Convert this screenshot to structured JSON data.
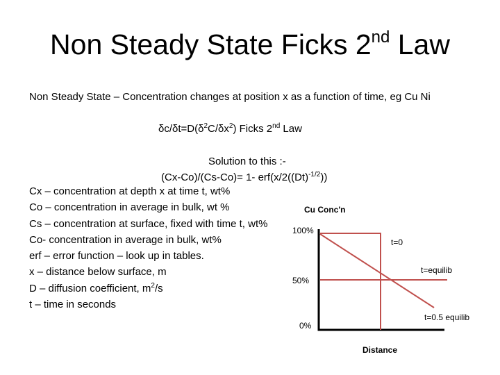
{
  "title": {
    "main": "Non Steady State Ficks 2",
    "sup": "nd",
    "tail": " Law"
  },
  "intro": "Non Steady State – Concentration changes at position x as a function of time, eg Cu Ni",
  "equation": {
    "p1": "δc/δt=D(δ",
    "s1": "2",
    "p2": "C/δx",
    "s2": "2",
    "p3": ") Ficks 2",
    "s3": "nd",
    "p4": " Law"
  },
  "solution_heading": "Solution to this :-",
  "solution": {
    "p1": "(Cx-Co)/(Cs-Co)= 1- erf(x/2((Dt)",
    "s1": "-1/2",
    "p2": "))"
  },
  "definitions": [
    "Cx – concentration at depth x at time t, wt%",
    "Co – concentration in average in bulk, wt %",
    "Cs – concentration at surface, fixed with time t, wt%",
    "Co-  concentration in average in bulk, wt%",
    "erf – error function – look up in tables.",
    "x – distance below surface, m"
  ],
  "def_diffusion": {
    "p1": "D – diffusion coefficient, m",
    "s1": "2",
    "p2": "/s"
  },
  "def_time": "t – time in seconds",
  "chart_labels": {
    "ylabel": "Cu Conc'n",
    "y_ticks": [
      "100%",
      "50%",
      "0%"
    ],
    "xlabel": "Distance",
    "curves": [
      "t=0",
      "t=equilib",
      "t=0.5 equilib"
    ]
  },
  "colors": {
    "curve": "#c0504d",
    "axis": "#000000"
  }
}
